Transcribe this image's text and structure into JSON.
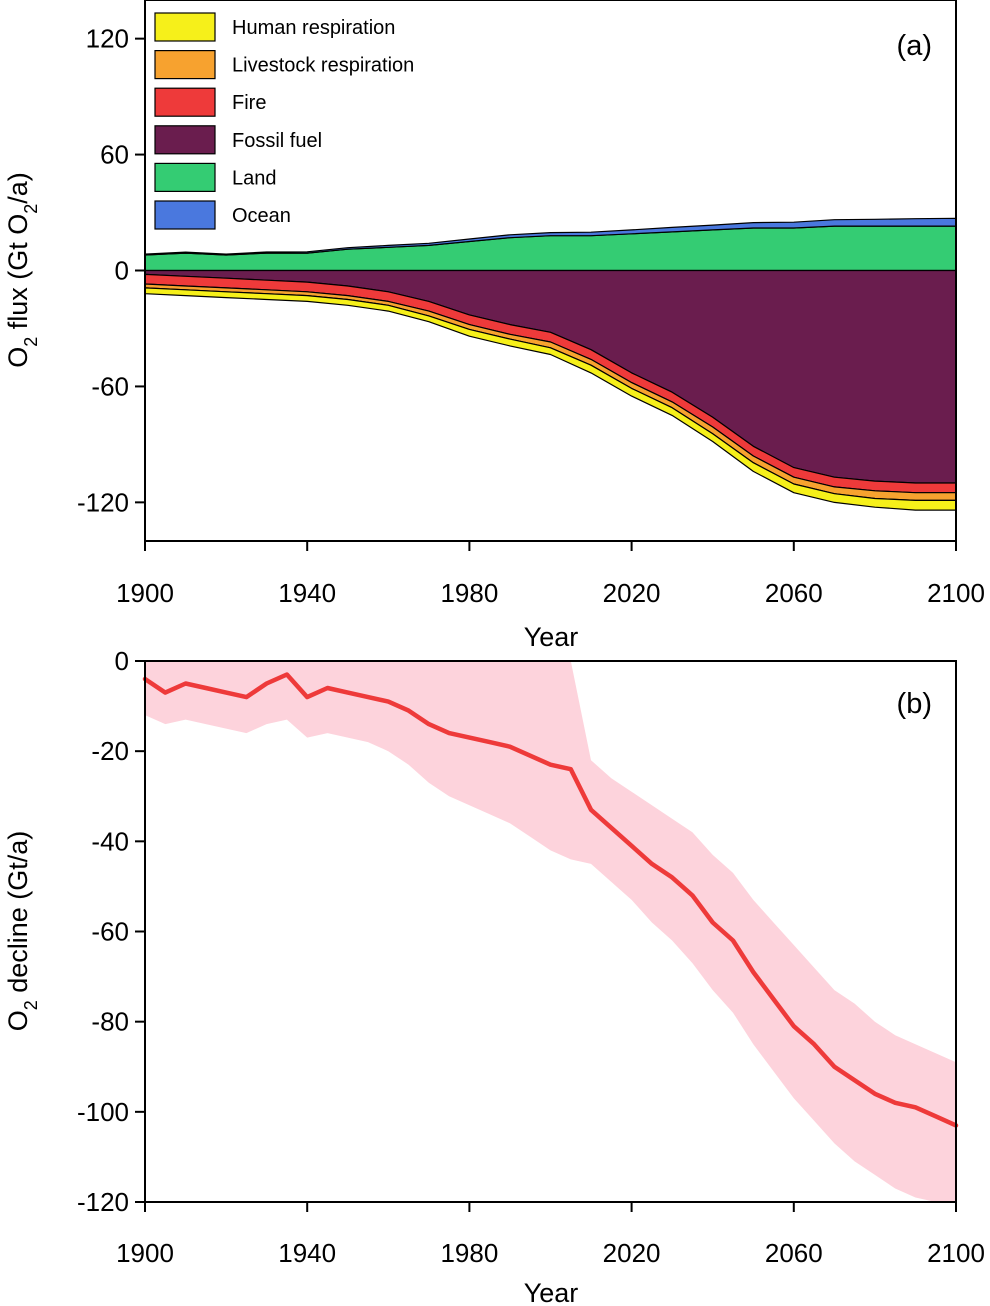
{
  "chart_data": [
    {
      "panel": "a",
      "type": "area",
      "panel_label": "(a)",
      "xlabel": "Year",
      "ylabel": "O2 flux (Gt O2/a)",
      "ylabel_parts": {
        "prefix": "O",
        "sub1": "2",
        "middle": " flux (Gt O",
        "sub2": "2",
        "suffix": "/a)"
      },
      "xlim": [
        1900,
        2100
      ],
      "ylim": [
        -140,
        140
      ],
      "xticks": [
        1900,
        1940,
        1980,
        2020,
        2060,
        2100
      ],
      "xtick_labels": [
        "1900",
        "1940",
        "1980",
        "2020",
        "2060",
        "2100"
      ],
      "yticks": [
        120,
        60,
        0,
        -60,
        -120
      ],
      "ytick_labels": [
        "120",
        "60",
        "0",
        "-60",
        "-120"
      ],
      "legend": [
        "Human respiration",
        "Livestock respiration",
        "Fire",
        "Fossil fuel",
        "Land",
        "Ocean"
      ],
      "colors": {
        "Human respiration": "#f6f01a",
        "Livestock respiration": "#f7a22f",
        "Fire": "#ee3a3a",
        "Fossil fuel": "#6a1d4e",
        "Land": "#34cc73",
        "Ocean": "#4a78de"
      },
      "x": [
        1900,
        1910,
        1920,
        1930,
        1940,
        1950,
        1960,
        1970,
        1980,
        1990,
        2000,
        2010,
        2020,
        2030,
        2040,
        2050,
        2060,
        2070,
        2080,
        2090,
        2100
      ],
      "series": [
        {
          "name": "Land",
          "sign": 1,
          "values": [
            8,
            9,
            8,
            9,
            9,
            11,
            12,
            13,
            15,
            17,
            18,
            18,
            19,
            20,
            21,
            22,
            22,
            23,
            23,
            23,
            23
          ]
        },
        {
          "name": "Ocean",
          "sign": 1,
          "values": [
            0.5,
            0.5,
            0.5,
            0.6,
            0.7,
            0.8,
            1.0,
            1.1,
            1.3,
            1.5,
            1.6,
            1.8,
            2.0,
            2.3,
            2.5,
            2.8,
            3.0,
            3.3,
            3.5,
            3.8,
            4.0
          ]
        },
        {
          "name": "Fossil fuel",
          "sign": -1,
          "values": [
            2,
            3,
            4,
            5,
            6,
            8,
            11,
            16,
            23,
            28,
            32,
            41,
            53,
            63,
            76,
            91,
            102,
            107,
            109,
            110,
            110
          ]
        },
        {
          "name": "Fire",
          "sign": -1,
          "values": [
            5,
            5,
            5,
            5,
            5,
            5,
            5,
            5,
            5,
            5,
            5,
            5,
            5,
            5,
            5,
            5,
            5,
            5,
            5,
            5,
            5
          ]
        },
        {
          "name": "Livestock respiration",
          "sign": -1,
          "values": [
            2,
            2,
            2,
            2,
            2,
            2,
            2,
            2.5,
            2.5,
            2.5,
            3,
            3,
            3,
            3,
            3.5,
            3.5,
            3.5,
            3.5,
            4,
            4,
            4
          ]
        },
        {
          "name": "Human respiration",
          "sign": -1,
          "values": [
            3,
            3,
            3,
            3,
            3,
            3,
            3,
            3,
            3.5,
            3.5,
            3.5,
            4,
            4,
            4,
            4,
            4.5,
            4.5,
            4.5,
            4.5,
            5,
            5
          ]
        }
      ]
    },
    {
      "panel": "b",
      "type": "line",
      "panel_label": "(b)",
      "xlabel": "Year",
      "ylabel": "O2 decline (Gt/a)",
      "ylabel_parts": {
        "prefix": "O",
        "sub1": "2",
        "middle": " decline (Gt/a)",
        "sub2": "",
        "suffix": ""
      },
      "xlim": [
        1900,
        2100
      ],
      "ylim": [
        -120,
        0
      ],
      "xticks": [
        1900,
        1940,
        1980,
        2020,
        2060,
        2100
      ],
      "xtick_labels": [
        "1900",
        "1940",
        "1980",
        "2020",
        "2060",
        "2100"
      ],
      "yticks": [
        0,
        -20,
        -40,
        -60,
        -80,
        -100,
        -120
      ],
      "ytick_labels": [
        "0",
        "-20",
        "-40",
        "-60",
        "-80",
        "-100",
        "-120"
      ],
      "line_color": "#ee3a3a",
      "band_color": "#fdd3dc",
      "x": [
        1900,
        1905,
        1910,
        1915,
        1920,
        1925,
        1930,
        1935,
        1940,
        1945,
        1950,
        1955,
        1960,
        1965,
        1970,
        1975,
        1980,
        1985,
        1990,
        1995,
        2000,
        2005,
        2010,
        2015,
        2020,
        2025,
        2030,
        2035,
        2040,
        2045,
        2050,
        2055,
        2060,
        2065,
        2070,
        2075,
        2080,
        2085,
        2090,
        2095,
        2100
      ],
      "series": [
        {
          "name": "mean",
          "values": [
            -4,
            -7,
            -5,
            -6,
            -7,
            -8,
            -5,
            -3,
            -8,
            -6,
            -7,
            -8,
            -9,
            -11,
            -14,
            -16,
            -17,
            -18,
            -19,
            -21,
            -23,
            -24,
            -33,
            -37,
            -41,
            -45,
            -48,
            -52,
            -58,
            -62,
            -69,
            -75,
            -81,
            -85,
            -90,
            -93,
            -96,
            -98,
            -99,
            -101,
            -103
          ]
        },
        {
          "name": "upper",
          "values": [
            0,
            0,
            0,
            0,
            0,
            0,
            0,
            0,
            0,
            0,
            0,
            0,
            0,
            0,
            0,
            0,
            0,
            0,
            0,
            0,
            0,
            0,
            -22,
            -26,
            -29,
            -32,
            -35,
            -38,
            -43,
            -47,
            -53,
            -58,
            -63,
            -68,
            -73,
            -76,
            -80,
            -83,
            -85,
            -87,
            -89
          ]
        },
        {
          "name": "lower",
          "values": [
            -12,
            -14,
            -13,
            -14,
            -15,
            -16,
            -14,
            -13,
            -17,
            -16,
            -17,
            -18,
            -20,
            -23,
            -27,
            -30,
            -32,
            -34,
            -36,
            -39,
            -42,
            -44,
            -45,
            -49,
            -53,
            -58,
            -62,
            -67,
            -73,
            -78,
            -85,
            -91,
            -97,
            -102,
            -107,
            -111,
            -114,
            -117,
            -119,
            -120,
            -120
          ]
        }
      ]
    }
  ]
}
